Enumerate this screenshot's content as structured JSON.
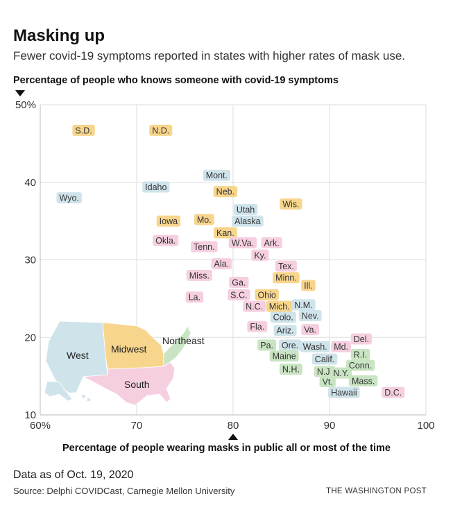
{
  "title": "Masking up",
  "subtitle": "Fewer covid-19 symptoms reported in states with higher rates of mask use.",
  "note": "Data as of Oct. 19, 2020",
  "source": "Source: Delphi COVIDCast, Carnegie Mellon University",
  "credit": "THE WASHINGTON POST",
  "colors": {
    "West": "#cfe3ea",
    "Midwest": "#f7d58c",
    "South": "#f5cfe0",
    "Northeast": "#c9e4c3",
    "grid": "#dedede"
  },
  "inset_map": {
    "regions": [
      "West",
      "Midwest",
      "South",
      "Northeast"
    ]
  },
  "chart_data": {
    "type": "scatter",
    "title": "Masking up",
    "xlabel": "Percentage of people wearing masks in public all or most of the time",
    "ylabel": "Percentage of people who knows someone with covid-19 symptoms",
    "xlim": [
      60,
      100
    ],
    "ylim": [
      10,
      50
    ],
    "xticks": [
      60,
      70,
      80,
      90,
      100
    ],
    "xtick_labels": [
      "60%",
      "70",
      "80",
      "90",
      "100"
    ],
    "yticks": [
      10,
      20,
      30,
      40,
      50
    ],
    "ytick_labels": [
      "10",
      "20",
      "30",
      "40",
      "50%"
    ],
    "grid": true,
    "legend": "inset map, bottom-left",
    "points": [
      {
        "label": "S.D.",
        "region": "Midwest",
        "x": 64.5,
        "y": 46.7
      },
      {
        "label": "N.D.",
        "region": "Midwest",
        "x": 72.5,
        "y": 46.7
      },
      {
        "label": "Wyo.",
        "region": "West",
        "x": 63.0,
        "y": 38.0
      },
      {
        "label": "Idaho",
        "region": "West",
        "x": 72.0,
        "y": 39.4
      },
      {
        "label": "Mont.",
        "region": "West",
        "x": 78.3,
        "y": 40.9
      },
      {
        "label": "Neb.",
        "region": "Midwest",
        "x": 79.2,
        "y": 38.8
      },
      {
        "label": "Wis.",
        "region": "Midwest",
        "x": 86.0,
        "y": 37.2
      },
      {
        "label": "Utah",
        "region": "West",
        "x": 81.3,
        "y": 36.5
      },
      {
        "label": "Alaska",
        "region": "West",
        "x": 81.5,
        "y": 35.0
      },
      {
        "label": "Iowa",
        "region": "Midwest",
        "x": 73.3,
        "y": 35.0
      },
      {
        "label": "Mo.",
        "region": "Midwest",
        "x": 77.0,
        "y": 35.2
      },
      {
        "label": "Kan.",
        "region": "Midwest",
        "x": 79.2,
        "y": 33.5
      },
      {
        "label": "Okla.",
        "region": "South",
        "x": 73.0,
        "y": 32.5
      },
      {
        "label": "Tenn.",
        "region": "South",
        "x": 77.0,
        "y": 31.7
      },
      {
        "label": "W.Va.",
        "region": "South",
        "x": 81.0,
        "y": 32.2
      },
      {
        "label": "Ark.",
        "region": "South",
        "x": 84.0,
        "y": 32.2
      },
      {
        "label": "Ky.",
        "region": "South",
        "x": 82.8,
        "y": 30.6
      },
      {
        "label": "Ala.",
        "region": "South",
        "x": 78.8,
        "y": 29.5
      },
      {
        "label": "Tex.",
        "region": "South",
        "x": 85.5,
        "y": 29.2
      },
      {
        "label": "Miss.",
        "region": "South",
        "x": 76.5,
        "y": 28.0
      },
      {
        "label": "Minn.",
        "region": "Midwest",
        "x": 85.5,
        "y": 27.7
      },
      {
        "label": "Ga.",
        "region": "South",
        "x": 80.6,
        "y": 27.1
      },
      {
        "label": "Ill.",
        "region": "Midwest",
        "x": 87.8,
        "y": 26.7
      },
      {
        "label": "S.C.",
        "region": "South",
        "x": 80.6,
        "y": 25.5
      },
      {
        "label": "Ohio",
        "region": "Midwest",
        "x": 83.5,
        "y": 25.5
      },
      {
        "label": "La.",
        "region": "South",
        "x": 76.0,
        "y": 25.2
      },
      {
        "label": "N.C.",
        "region": "South",
        "x": 82.2,
        "y": 24.0
      },
      {
        "label": "Mich.",
        "region": "Midwest",
        "x": 84.8,
        "y": 24.0
      },
      {
        "label": "N.M.",
        "region": "West",
        "x": 87.3,
        "y": 24.2
      },
      {
        "label": "Colo.",
        "region": "West",
        "x": 85.2,
        "y": 22.6
      },
      {
        "label": "Nev.",
        "region": "West",
        "x": 88.0,
        "y": 22.8
      },
      {
        "label": "Fla.",
        "region": "South",
        "x": 82.5,
        "y": 21.4
      },
      {
        "label": "Ariz.",
        "region": "West",
        "x": 85.4,
        "y": 20.9
      },
      {
        "label": "Va.",
        "region": "South",
        "x": 88.0,
        "y": 21.0
      },
      {
        "label": "Del.",
        "region": "South",
        "x": 93.3,
        "y": 19.8
      },
      {
        "label": "Pa.",
        "region": "Northeast",
        "x": 83.5,
        "y": 19.0
      },
      {
        "label": "Ore.",
        "region": "West",
        "x": 85.9,
        "y": 19.0
      },
      {
        "label": "Wash.",
        "region": "West",
        "x": 88.5,
        "y": 18.8
      },
      {
        "label": "Md.",
        "region": "South",
        "x": 91.2,
        "y": 18.8
      },
      {
        "label": "R.I.",
        "region": "Northeast",
        "x": 93.2,
        "y": 17.8
      },
      {
        "label": "Maine",
        "region": "Northeast",
        "x": 85.3,
        "y": 17.6
      },
      {
        "label": "Calif.",
        "region": "West",
        "x": 89.5,
        "y": 17.2
      },
      {
        "label": "Conn.",
        "region": "Northeast",
        "x": 93.2,
        "y": 16.4
      },
      {
        "label": "N.H.",
        "region": "Northeast",
        "x": 86.0,
        "y": 15.9
      },
      {
        "label": "N.J.",
        "region": "Northeast",
        "x": 89.5,
        "y": 15.6
      },
      {
        "label": "N.Y.",
        "region": "Northeast",
        "x": 91.2,
        "y": 15.4
      },
      {
        "label": "Mass.",
        "region": "Northeast",
        "x": 93.5,
        "y": 14.4
      },
      {
        "label": "Vt.",
        "region": "Northeast",
        "x": 89.8,
        "y": 14.3
      },
      {
        "label": "Hawaii",
        "region": "West",
        "x": 91.5,
        "y": 12.9
      },
      {
        "label": "D.C.",
        "region": "South",
        "x": 96.6,
        "y": 12.9
      }
    ]
  }
}
